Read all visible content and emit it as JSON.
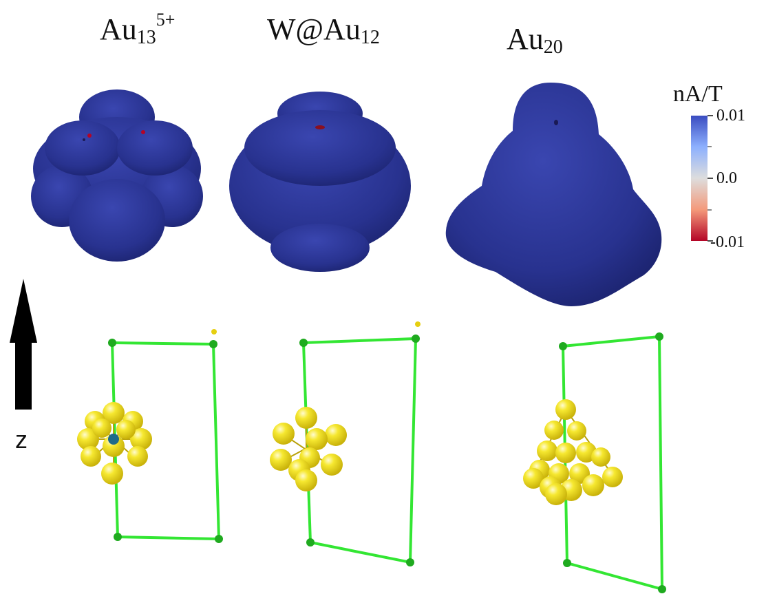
{
  "panels": [
    {
      "title_main": "Au",
      "title_sub": "13",
      "title_sup": "5+"
    },
    {
      "title_main": "W@Au",
      "title_sub": "12",
      "title_sup": ""
    },
    {
      "title_main": "Au",
      "title_sub": "20",
      "title_sup": ""
    }
  ],
  "colorbar": {
    "label": "nA/T",
    "ticks": [
      "0.01",
      "0.0",
      "-0.01"
    ],
    "colors": {
      "high": "#3a4cc0",
      "mid": "#dddddd",
      "low": "#b40426"
    }
  },
  "axis": {
    "label": "z"
  },
  "colors": {
    "isosurface": "#28328f",
    "cell_lines": "#33e633",
    "gold_atoms": "#f2e21a",
    "tungsten_atom": "#1d6a8a"
  }
}
